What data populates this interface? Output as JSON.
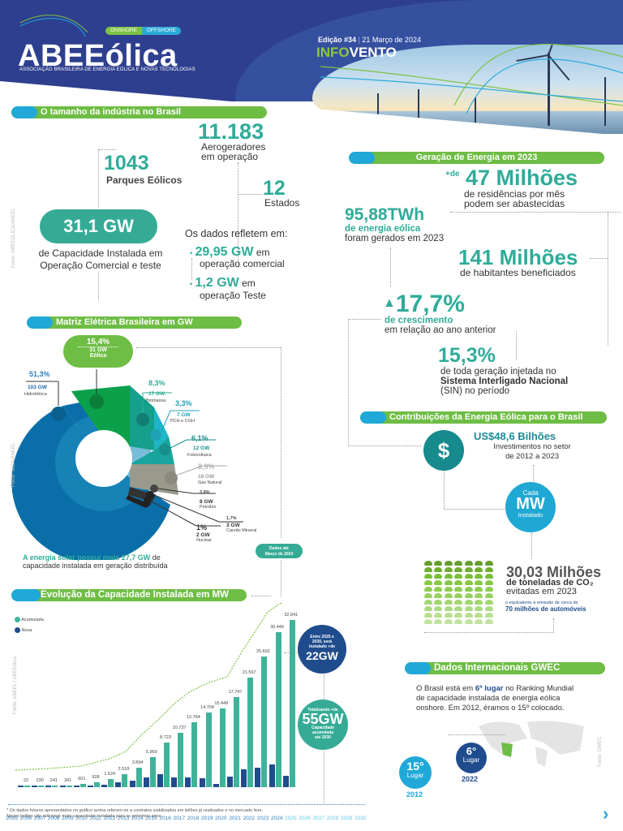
{
  "header": {
    "logo": "ABEEólica",
    "logo_subtitle": "ASSOCIAÇÃO BRASILEIRA DE ENERGIA EÓLICA E NOVAS TECNOLOGIAS",
    "pill_onshore": "ONSHORE",
    "pill_offshore": "OFFSHORE",
    "edition": "Edição #34",
    "date": "21 Março de 2024",
    "title_green": "INFO",
    "title_white": "VENTO"
  },
  "industry": {
    "section_title": "O tamanho da indústria no Brasil",
    "turbines_value": "11.183",
    "turbines_label1": "Aerogeradores",
    "turbines_label2": "em operação",
    "parks_value": "1043",
    "parks_label": "Parques Eólicos",
    "states_value": "12",
    "states_label": "Estados",
    "capacity_value": "31,1 GW",
    "capacity_label1": "de Capacidade Instalada em",
    "capacity_label2": "Operação Comercial e teste",
    "reflect_label": "Os dados refletem em:",
    "commercial_value": "29,95 GW",
    "commercial_suffix": "em",
    "commercial_label": "operação comercial",
    "test_value": "1,2 GW",
    "test_suffix": "em",
    "test_label": "operação Teste",
    "source": "Fonte: ABEEÓLICA/ANEEL"
  },
  "generation": {
    "section_title": "Geração de Energia em 2023",
    "homes_prefix": "+de",
    "homes_value": "47 Milhões",
    "homes_label1": "de residências por mês",
    "homes_label2": "podem ser abastecidas",
    "twh_value": "95,88TWh",
    "twh_label1": "de energia eólica",
    "twh_label2": "foram gerados em 2023",
    "people_value": "141 Milhões",
    "people_label": "de habitantes beneficiados",
    "growth_value": "17,7%",
    "growth_label1": "de crescimento",
    "growth_label2": "em relação ao ano anterior",
    "sin_value": "15,3%",
    "sin_label1": "de toda geração injetada no",
    "sin_label2": "Sistema Interligado Nacional",
    "sin_label3": "(SIN) no período"
  },
  "contributions": {
    "section_title": "Contribuições da Energia Eólica para o Brasil",
    "dollar_icon": "$",
    "invest_value": "US$48,6 Bilhões",
    "invest_label1": "Investimentos no setor",
    "invest_label2": "de 2012 a 2023",
    "mw_top": "Cada",
    "mw_mid": "MW",
    "mw_bottom": "Instalado",
    "co2_value": "30,03 Milhões",
    "co2_label1": "de toneladas de CO₂",
    "co2_label2": "evitadas em 2023",
    "cars_label1": "o equivalente à emissão de cerca de",
    "cars_label2": "70 milhões de automóveis"
  },
  "matrix": {
    "section_title": "Matriz Elétrica Brasileira em GW",
    "wind_pct": "15,4%",
    "wind_gw": "31 GW",
    "wind_name": "Eólica",
    "hydro_pct": "51,3%",
    "hydro_gw": "103 GW",
    "hydro_name": "Hidrelétrica",
    "bio_pct": "8,3%",
    "bio_gw": "17 GW",
    "bio_name": "Biomassa",
    "pch_pct": "3,3%",
    "pch_gw": "7 GW",
    "pch_name": "PCH e CGH",
    "solar_pct": "6,1%",
    "solar_gw": "12 GW",
    "solar_name": "Fotovoltaica",
    "gas_pct": "8,9%",
    "gas_gw": "18 GW",
    "gas_name": "Gás Natural",
    "oil_pct": "3,9%",
    "oil_gw": "8 GW",
    "oil_name": "Petróleo",
    "coal_pct": "1,7%",
    "coal_gw": "3 GW",
    "coal_name": "Carvão Mineral",
    "nuclear_pct": "1%",
    "nuclear_gw": "2 GW",
    "nuclear_name": "Nuclear",
    "solar_note_bold": "A energia solar possui mais 27,7 GW",
    "solar_note_rest": "de",
    "solar_note_line2": "capacidade instalada em geração distribuída",
    "data_until1": "Dados até",
    "data_until2": "Março de 2024",
    "source": "Fonte: SIGA/ANEEL"
  },
  "evolution": {
    "section_title": "Evolução da Capacidade Instalada em MW",
    "legend_acc": "Acumulada",
    "legend_new": "Nova",
    "source": "Fonte: ANEEL / ABEEólica",
    "future_top1": "Entre 2025 e",
    "future_top2": "2030, será",
    "future_top3": "instalado +de",
    "future_top_value": "22GW",
    "future_total1": "Totalizando +de",
    "future_total_value": "55GW",
    "future_total2": "Capacidade",
    "future_total3": "acumulada",
    "future_total4": "até 2030",
    "footnote1": "* Os dados futuros apresentados no gráfico acima referem-se a contratos viabilizados em leilões já realizados e no mercado livre.",
    "footnote2": "Novos leilões vão adicionar mais capacidade instalada para os próximos anos."
  },
  "gwec": {
    "section_title": "Dados Internacionais GWEC",
    "text_pre": "O Brasil está em ",
    "text_bold": "6º lugar",
    "text_post": " no Ranking Mundial",
    "text_line2": "de capacidade instalada de energia eólica",
    "text_line3": "onshore. Em 2012, éramos o 15º colocado.",
    "rank_2012": "15°",
    "rank_2012_label": "Lugar",
    "year_2012": "2012",
    "rank_2022": "6°",
    "rank_2022_label": "Lugar",
    "year_2022": "2022",
    "source": "Fonte: GWEC"
  },
  "nav": {
    "next_icon": "›"
  },
  "chart_data": [
    {
      "type": "bar",
      "title": "Evolução da Capacidade Instalada em MW",
      "xlabel": "",
      "ylabel": "MW",
      "categories": [
        "2005",
        "2006",
        "2007",
        "2008",
        "2009",
        "2010",
        "2011",
        "2012",
        "2013",
        "2014",
        "2015",
        "2016",
        "2017",
        "2018",
        "2019",
        "2020",
        "2021",
        "2022",
        "2023",
        "2024",
        "2025",
        "2026",
        "2027",
        "2028",
        "2029",
        "2030"
      ],
      "series": [
        {
          "name": "Acumulada",
          "values": [
            22,
            230,
            241,
            341,
            601,
            928,
            1524,
            2518,
            3894,
            5969,
            8723,
            10737,
            12764,
            14704,
            15449,
            17747,
            21567,
            25632,
            30449,
            32841,
            null,
            null,
            null,
            null,
            null,
            null
          ]
        },
        {
          "name": "Nova",
          "values": [
            22,
            208,
            11,
            100,
            260,
            327,
            596,
            994,
            1376,
            2075,
            2754,
            2014,
            2027,
            1940,
            745,
            2298,
            3820,
            4065,
            4817,
            2392,
            null,
            null,
            null,
            null,
            null,
            null
          ]
        }
      ],
      "legend": [
        "Acumulada",
        "Nova"
      ],
      "legend_position": "top-left",
      "annotations": [
        "Dados até Março de 2024",
        "Entre 2025 e 2030, será instalado +de 22GW",
        "Totalizando +de 55GW Capacidade acumulada até 2030"
      ],
      "grid": false
    },
    {
      "type": "pie",
      "title": "Matriz Elétrica Brasileira em GW",
      "categories": [
        "Hidrelétrica",
        "Eólica",
        "Biomassa",
        "PCH e CGH",
        "Fotovoltaica",
        "Gás Natural",
        "Petróleo",
        "Carvão Mineral",
        "Nuclear"
      ],
      "values": [
        51.3,
        15.4,
        8.3,
        3.3,
        6.1,
        8.9,
        3.9,
        1.7,
        1.0
      ],
      "gw": [
        103,
        31,
        17,
        7,
        12,
        18,
        8,
        3,
        2
      ]
    }
  ]
}
